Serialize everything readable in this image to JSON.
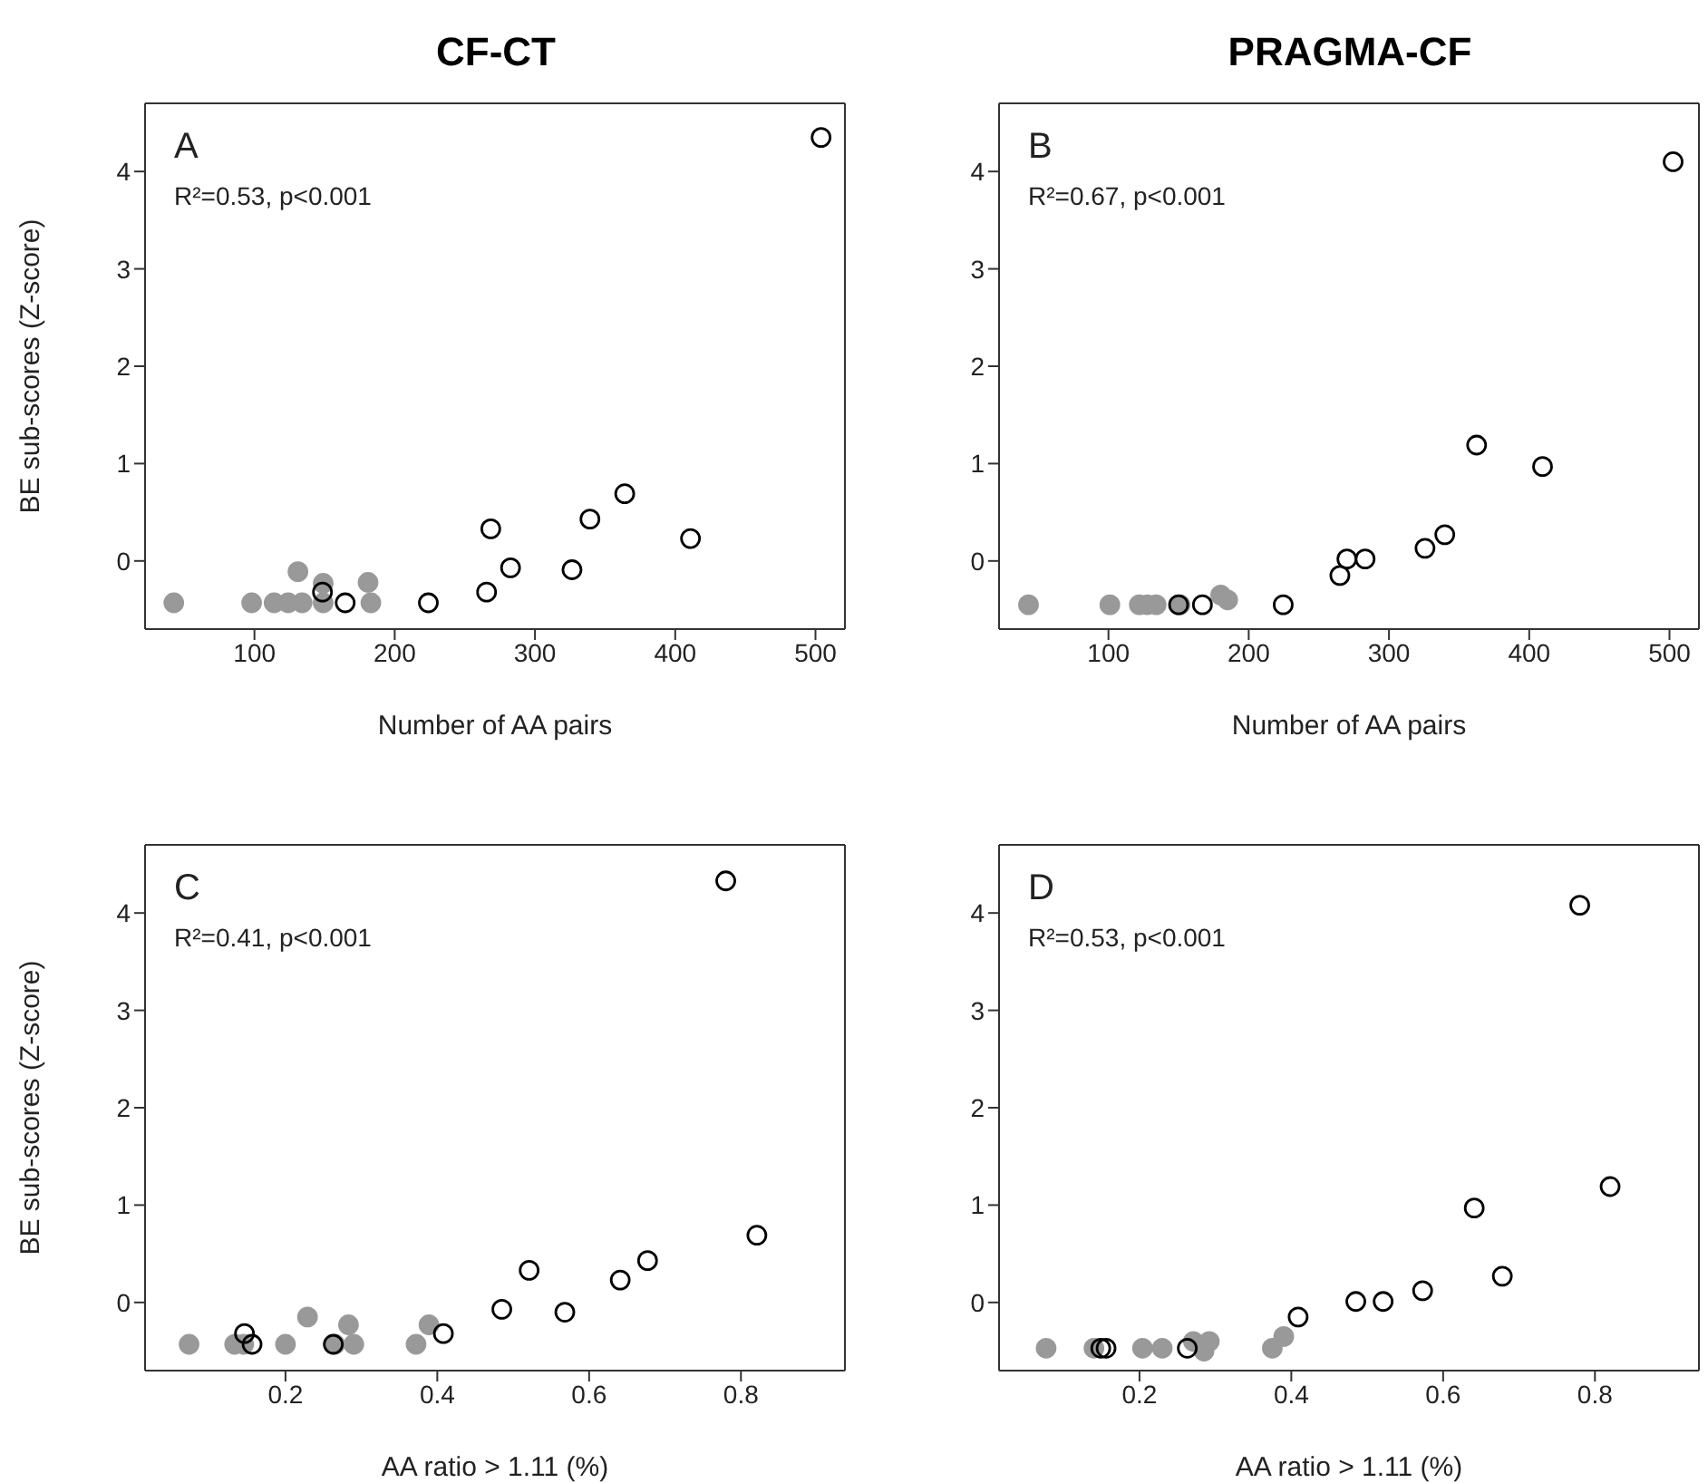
{
  "chart_data": [
    {
      "type": "scatter",
      "title": "CF-CT",
      "xlabel": "Number of AA pairs",
      "ylabel": "BE sub-scores (Z-score)",
      "xlim": [
        22,
        521
      ],
      "xticks": [
        100,
        200,
        300,
        400,
        500
      ],
      "ylim": [
        -0.7,
        4.7
      ],
      "yticks": [
        0,
        1,
        2,
        3,
        4
      ],
      "marker": "circle",
      "annotations": [
        "A",
        "R²=0.53, p<0.001"
      ],
      "series": [
        {
          "color": "#999999",
          "x": [
            42.5,
            98,
            114,
            124,
            134,
            131,
            149,
            149,
            181,
            183
          ],
          "values": [
            -0.43,
            -0.43,
            -0.43,
            -0.43,
            -0.43,
            -0.11,
            -0.23,
            -0.43,
            -0.22,
            -0.43
          ]
        },
        {
          "color": "#000000",
          "x": [
            148.5,
            164.7,
            224,
            265.5,
            268.5,
            282.6,
            326.4,
            339.2,
            364,
            410.9,
            504
          ],
          "values": [
            -0.32,
            -0.43,
            -0.43,
            -0.32,
            0.33,
            -0.07,
            -0.09,
            0.43,
            0.69,
            0.23,
            4.35
          ]
        }
      ]
    },
    {
      "type": "scatter",
      "title": "PRAGMA-CF",
      "xlabel": "Number of AA pairs",
      "xlim": [
        22,
        521
      ],
      "xticks": [
        100,
        200,
        300,
        400,
        500
      ],
      "ylim": [
        -0.7,
        4.7
      ],
      "yticks": [
        0,
        1,
        2,
        3,
        4
      ],
      "marker": "circle",
      "annotations": [
        "B",
        "R²=0.67, p<0.001"
      ],
      "series": [
        {
          "color": "#999999",
          "x": [
            43,
            101,
            122,
            128,
            134,
            151,
            180,
            185
          ],
          "values": [
            -0.45,
            -0.45,
            -0.45,
            -0.45,
            -0.45,
            -0.45,
            -0.35,
            -0.4
          ]
        },
        {
          "color": "#000000",
          "x": [
            150,
            167,
            224.6,
            265,
            270,
            283,
            325.7,
            339.8,
            362.5,
            409.5,
            502.6
          ],
          "values": [
            -0.45,
            -0.45,
            -0.45,
            -0.15,
            0.02,
            0.02,
            0.13,
            0.27,
            1.19,
            0.97,
            4.1
          ]
        }
      ]
    },
    {
      "type": "scatter",
      "xlabel": "AA ratio > 1.11 (%)",
      "ylabel": "BE sub-scores (Z-score)",
      "xlim": [
        0.015,
        0.937
      ],
      "xticks": [
        0.2,
        0.4,
        0.6,
        0.8
      ],
      "ylim": [
        -0.7,
        4.7
      ],
      "yticks": [
        0,
        1,
        2,
        3,
        4
      ],
      "marker": "circle",
      "annotations": [
        "C",
        "R²=0.41, p<0.001"
      ],
      "series": [
        {
          "color": "#999999",
          "x": [
            0.073,
            0.133,
            0.145,
            0.2,
            0.229,
            0.265,
            0.283,
            0.29,
            0.372,
            0.389
          ],
          "values": [
            -0.43,
            -0.43,
            -0.43,
            -0.43,
            -0.15,
            -0.43,
            -0.23,
            -0.43,
            -0.43,
            -0.23
          ]
        },
        {
          "color": "#000000",
          "x": [
            0.146,
            0.156,
            0.263,
            0.408,
            0.485,
            0.521,
            0.568,
            0.641,
            0.677,
            0.78,
            0.821
          ],
          "values": [
            -0.32,
            -0.43,
            -0.43,
            -0.32,
            -0.07,
            0.33,
            -0.1,
            0.23,
            0.43,
            4.33,
            0.69
          ]
        }
      ]
    },
    {
      "type": "scatter",
      "xlabel": "AA ratio > 1.11 (%)",
      "xlim": [
        0.015,
        0.937
      ],
      "xticks": [
        0.2,
        0.4,
        0.6,
        0.8
      ],
      "ylim": [
        -0.7,
        4.7
      ],
      "yticks": [
        0,
        1,
        2,
        3,
        4
      ],
      "marker": "circle",
      "annotations": [
        "D",
        "R²=0.53, p<0.001"
      ],
      "series": [
        {
          "color": "#999999",
          "x": [
            0.077,
            0.14,
            0.204,
            0.23,
            0.271,
            0.285,
            0.292,
            0.375,
            0.39
          ],
          "values": [
            -0.47,
            -0.47,
            -0.47,
            -0.47,
            -0.4,
            -0.5,
            -0.4,
            -0.47,
            -0.35
          ]
        },
        {
          "color": "#000000",
          "x": [
            0.149,
            0.156,
            0.263,
            0.409,
            0.485,
            0.521,
            0.573,
            0.641,
            0.678,
            0.78,
            0.82
          ],
          "values": [
            -0.47,
            -0.47,
            -0.47,
            -0.15,
            0.01,
            0.01,
            0.12,
            0.97,
            0.27,
            4.08,
            1.19
          ]
        }
      ]
    }
  ]
}
